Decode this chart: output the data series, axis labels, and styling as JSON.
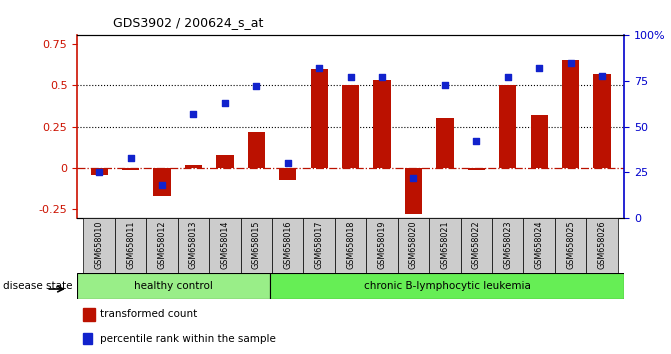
{
  "title": "GDS3902 / 200624_s_at",
  "samples": [
    "GSM658010",
    "GSM658011",
    "GSM658012",
    "GSM658013",
    "GSM658014",
    "GSM658015",
    "GSM658016",
    "GSM658017",
    "GSM658018",
    "GSM658019",
    "GSM658020",
    "GSM658021",
    "GSM658022",
    "GSM658023",
    "GSM658024",
    "GSM658025",
    "GSM658026"
  ],
  "bar_values": [
    -0.04,
    -0.01,
    -0.17,
    0.02,
    0.08,
    0.22,
    -0.07,
    0.6,
    0.5,
    0.53,
    -0.28,
    0.3,
    -0.01,
    0.5,
    0.32,
    0.65,
    0.57
  ],
  "blue_values": [
    25,
    33,
    18,
    57,
    63,
    72,
    30,
    82,
    77,
    77,
    22,
    73,
    42,
    77,
    82,
    85,
    78
  ],
  "bar_color": "#BB1100",
  "blue_color": "#1122CC",
  "healthy_count": 6,
  "group_labels": [
    "healthy control",
    "chronic B-lymphocytic leukemia"
  ],
  "healthy_color": "#99EE88",
  "leuk_color": "#66EE55",
  "disease_label": "disease state",
  "legend_bar": "transformed count",
  "legend_blue": "percentile rank within the sample",
  "ylim_left": [
    -0.3,
    0.8
  ],
  "ylim_right": [
    0,
    100
  ],
  "yticks_left": [
    -0.25,
    0.0,
    0.25,
    0.5,
    0.75
  ],
  "yticks_right": [
    0,
    25,
    50,
    75,
    100
  ],
  "bg_color": "#FFFFFF",
  "plot_bg_color": "#FFFFFF",
  "tick_color_left": "#CC1100",
  "tick_color_right": "#0000CC",
  "xticklabel_bg": "#CCCCCC"
}
